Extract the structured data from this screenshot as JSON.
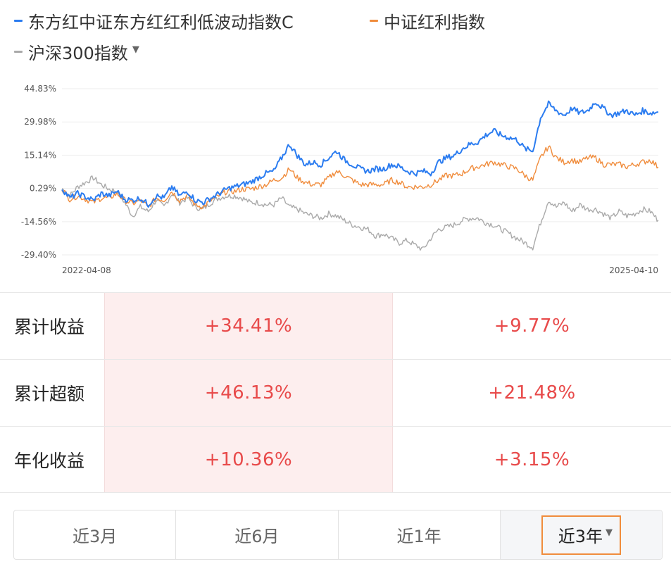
{
  "legend": [
    {
      "label": "东方红中证东方红红利低波动指数C",
      "color": "#2b7cf0"
    },
    {
      "label": "中证红利指数",
      "color": "#f08c3c"
    },
    {
      "label": "沪深300指数",
      "color": "#aaaaaa",
      "icon": "caret-down-icon"
    }
  ],
  "legend_caret": "▼",
  "chart_data": {
    "type": "line",
    "x_start": "2022-04-08",
    "x_end": "2025-04-10",
    "x_tick_labels": [
      "2022-04-08",
      "2025-04-10"
    ],
    "y_tick_labels": [
      "44.83%",
      "29.98%",
      "15.14%",
      "0.29%",
      "-14.56%",
      "-29.40%"
    ],
    "y_ticks": [
      44.83,
      29.98,
      15.14,
      0.29,
      -14.56,
      -29.4
    ],
    "ylim": [
      -29.4,
      44.83
    ],
    "grid": true,
    "series": [
      {
        "name": "东方红中证东方红红利低波动指数C",
        "color": "#2b7cf0",
        "values": [
          0.3,
          -4,
          -2,
          -3.5,
          -5,
          -2,
          -3,
          -1,
          -4.5,
          -5,
          -4,
          -7,
          -3,
          -4,
          1,
          -3,
          -1,
          -5,
          -6,
          -4,
          -2,
          0,
          1,
          2,
          3,
          5,
          7,
          8,
          14,
          20,
          15,
          11,
          12,
          11,
          14,
          17,
          13,
          11,
          9,
          8,
          9,
          9,
          11,
          10,
          8,
          7,
          8,
          7,
          12,
          14,
          15,
          18,
          20,
          21,
          24,
          26,
          24,
          23,
          22,
          18,
          17,
          32,
          38,
          35,
          33,
          36,
          34,
          35,
          39,
          36,
          33,
          34,
          35,
          33,
          35,
          34,
          34.41
        ]
      },
      {
        "name": "中证红利指数",
        "color": "#f08c3c",
        "values": [
          0.3,
          -4.5,
          -3,
          -4.5,
          -6,
          -4,
          -4,
          -2,
          -5,
          -6.5,
          -5,
          -8,
          -4,
          -5,
          -1,
          -5,
          -3,
          -7,
          -8,
          -5,
          -3,
          -1,
          -1,
          0,
          0,
          1,
          2,
          4,
          5,
          9,
          5,
          3,
          2,
          2,
          5,
          8,
          6,
          4,
          2,
          2,
          2,
          2,
          4,
          3,
          1,
          1,
          1,
          2,
          4,
          6,
          6,
          7,
          9,
          10,
          11,
          12,
          11,
          10,
          9,
          6,
          4,
          14,
          19,
          14,
          12,
          13,
          12,
          14,
          14,
          11,
          11,
          11,
          10,
          11,
          12,
          13,
          9.77
        ]
      },
      {
        "name": "沪深300指数",
        "color": "#aaaaaa",
        "values": [
          0.3,
          -3,
          1,
          3,
          5,
          2,
          0,
          -1,
          -6,
          -12,
          -8,
          -10,
          -5,
          -8,
          -2,
          -6,
          -4,
          -8,
          -9,
          -6,
          -4,
          -3,
          -3,
          -4,
          -6,
          -6,
          -7,
          -7,
          -4,
          -8,
          -9,
          -11,
          -12,
          -13,
          -11,
          -12,
          -14,
          -16,
          -17,
          -18,
          -21,
          -20,
          -22,
          -24,
          -23,
          -25,
          -27,
          -22,
          -18,
          -17,
          -16,
          -14,
          -13,
          -13,
          -15,
          -16,
          -18,
          -20,
          -22,
          -24,
          -26,
          -15,
          -5,
          -8,
          -6,
          -10,
          -7,
          -9,
          -9,
          -11,
          -13,
          -10,
          -12,
          -11,
          -9,
          -10,
          -14
        ]
      }
    ]
  },
  "stats": [
    {
      "label": "累计收益",
      "v1": "+34.41%",
      "v2": "+9.77%"
    },
    {
      "label": "累计超额",
      "v1": "+46.13%",
      "v2": "+21.48%"
    },
    {
      "label": "年化收益",
      "v1": "+10.36%",
      "v2": "+3.15%"
    }
  ],
  "tabs": [
    {
      "label": "近3月",
      "active": false
    },
    {
      "label": "近6月",
      "active": false
    },
    {
      "label": "近1年",
      "active": false
    },
    {
      "label": "近3年",
      "active": true
    }
  ],
  "tab_caret": "▼"
}
